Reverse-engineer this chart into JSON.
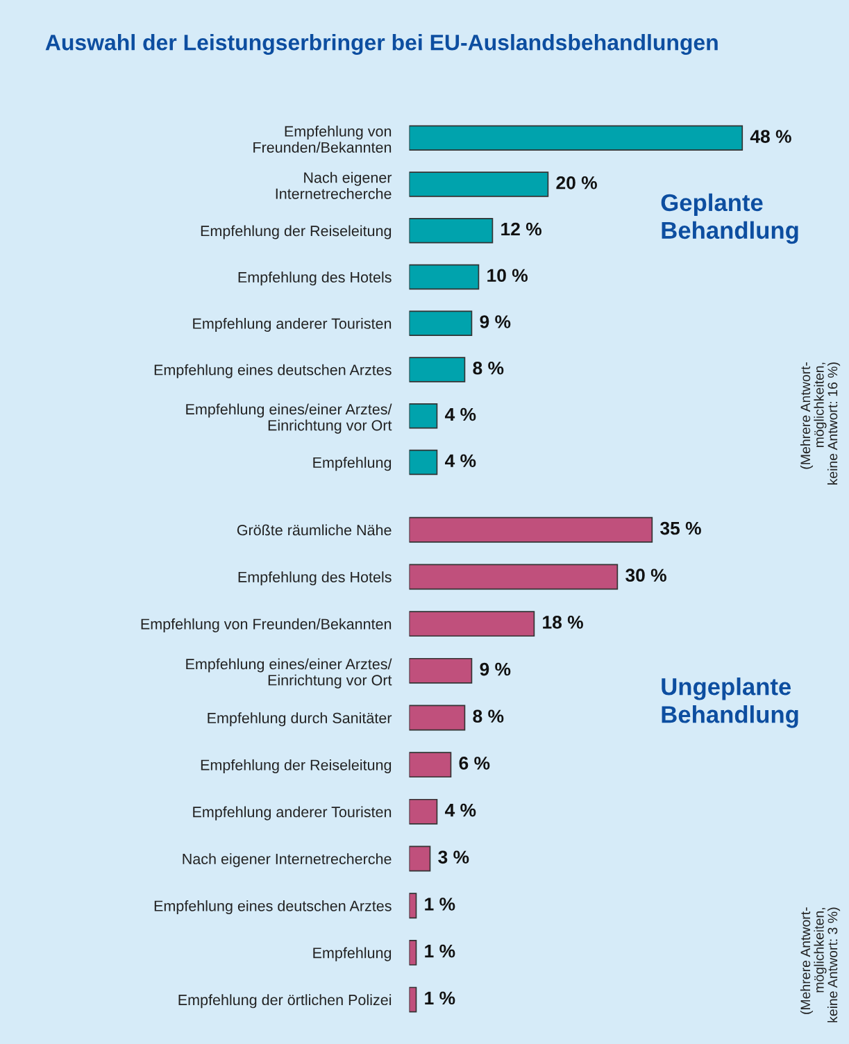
{
  "chart_data": [
    {
      "type": "bar",
      "orientation": "horizontal",
      "title": "Auswahl der Leistungserbringer bei EU-Auslandsbehandlungen",
      "subtitle": "Geplante Behandlung",
      "categories": [
        "Empfehlung von\nFreunden/Bekannten",
        "Nach eigener\nInternetrecherche",
        "Empfehlung der Reiseleitung",
        "Empfehlung des Hotels",
        "Empfehlung anderer Touristen",
        "Empfehlung eines deutschen Arztes",
        "Empfehlung eines/einer Arztes/\nEinrichtung vor Ort",
        "Empfehlung"
      ],
      "values": [
        48,
        20,
        12,
        10,
        9,
        8,
        4,
        4
      ],
      "color": "#00a3ad",
      "value_labels": [
        "48 %",
        "20 %",
        "12 %",
        "10 %",
        "9 %",
        "8 %",
        "4 %",
        "4 %"
      ],
      "annotations": [
        "(Mehrere Antwort-\nmöglichkeiten,\nkeine Antwort: 16 %)"
      ],
      "grid": false,
      "legend": false,
      "tick_labels": "y"
    },
    {
      "type": "bar",
      "orientation": "horizontal",
      "subtitle": "Ungeplante Behandlung",
      "categories": [
        "Größte räumliche Nähe",
        "Empfehlung des Hotels",
        "Empfehlung von Freunden/Bekannten",
        "Empfehlung eines/einer Arztes/\nEinrichtung vor Ort",
        "Empfehlung durch Sanitäter",
        "Empfehlung der Reiseleitung",
        "Empfehlung anderer Touristen",
        "Nach eigener Internetrecherche",
        "Empfehlung eines deutschen Arztes",
        "Empfehlung",
        "Empfehlung der örtlichen Polizei"
      ],
      "values": [
        35,
        30,
        18,
        9,
        8,
        6,
        4,
        3,
        1,
        1,
        1
      ],
      "color": "#c0507c",
      "value_labels": [
        "35 %",
        "30 %",
        "18 %",
        "9 %",
        "8 %",
        "6 %",
        "4 %",
        "3 %",
        "1 %",
        "1 %",
        "1 %"
      ],
      "annotations": [
        "(Mehrere Antwort-\nmöglichkeiten,\nkeine Antwort: 3 %)"
      ],
      "grid": false,
      "legend": false,
      "tick_labels": "y"
    }
  ]
}
